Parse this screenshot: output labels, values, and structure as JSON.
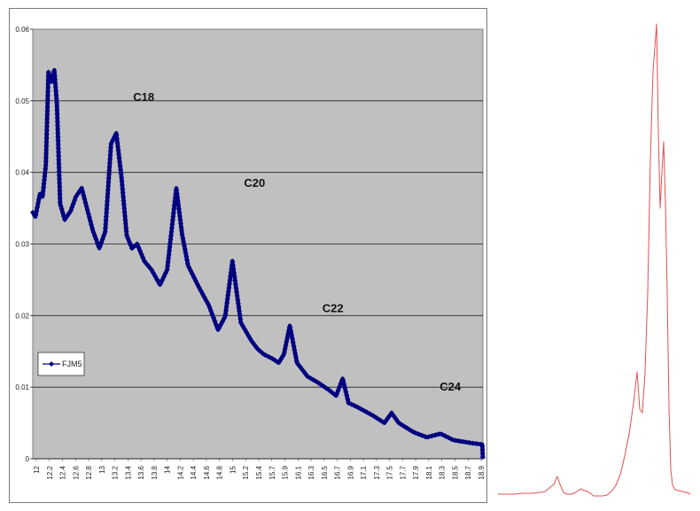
{
  "chart_data": [
    {
      "type": "line",
      "title": "",
      "xlabel": "",
      "ylabel": "",
      "ylim": [
        0,
        0.06
      ],
      "yticks": [
        "0",
        "0.01",
        "0.02",
        "0.03",
        "0.04",
        "0.05",
        "0.06"
      ],
      "xticks": [
        "12",
        "12.2",
        "12.4",
        "12.6",
        "12.8",
        "13",
        "13.2",
        "13.4",
        "13.6",
        "13.8",
        "14",
        "14.2",
        "14.4",
        "14.6",
        "14.8",
        "15",
        "15.2",
        "15.4",
        "15.7",
        "15.9",
        "16.1",
        "16.3",
        "16.5",
        "16.7",
        "16.9",
        "17.1",
        "17.3",
        "17.5",
        "17.7",
        "17.9",
        "18.1",
        "18.3",
        "18.5",
        "18.7",
        "18.9"
      ],
      "grid": true,
      "plot_background": "#c0c0c0",
      "legend": {
        "position": "left-middle",
        "entries": [
          "FJM5"
        ]
      },
      "annotations": [
        {
          "text": "C18",
          "x": 13.7,
          "y": 0.05
        },
        {
          "text": "C20",
          "x": 15.4,
          "y": 0.038
        },
        {
          "text": "C22",
          "x": 16.6,
          "y": 0.0205
        },
        {
          "text": "C24",
          "x": 18.4,
          "y": 0.0095
        }
      ],
      "series": [
        {
          "name": "FJM5",
          "color": "#000080",
          "marker": "diamond",
          "x": [
            12.0,
            12.04,
            12.11,
            12.15,
            12.2,
            12.24,
            12.29,
            12.33,
            12.37,
            12.42,
            12.49,
            12.58,
            12.66,
            12.75,
            12.83,
            12.92,
            13.02,
            13.11,
            13.2,
            13.28,
            13.36,
            13.44,
            13.52,
            13.6,
            13.71,
            13.82,
            13.95,
            14.06,
            14.2,
            14.29,
            14.38,
            14.55,
            14.7,
            14.84,
            14.95,
            15.06,
            15.19,
            15.35,
            15.45,
            15.54,
            15.67,
            15.77,
            15.85,
            15.94,
            16.05,
            16.21,
            16.38,
            16.54,
            16.65,
            16.75,
            16.84,
            16.98,
            17.22,
            17.39,
            17.5,
            17.61,
            17.84,
            18.04,
            18.25,
            18.45,
            18.72,
            18.89,
            18.9
          ],
          "y": [
            0.0344,
            0.0338,
            0.037,
            0.0366,
            0.041,
            0.054,
            0.0527,
            0.0543,
            0.0495,
            0.0356,
            0.0334,
            0.0346,
            0.0366,
            0.0378,
            0.035,
            0.0319,
            0.0294,
            0.0317,
            0.044,
            0.0455,
            0.0393,
            0.0312,
            0.0294,
            0.03,
            0.0276,
            0.0264,
            0.0243,
            0.0264,
            0.0378,
            0.0313,
            0.027,
            0.0239,
            0.0214,
            0.018,
            0.0199,
            0.0276,
            0.019,
            0.0165,
            0.0153,
            0.0146,
            0.014,
            0.0134,
            0.0146,
            0.0186,
            0.0134,
            0.0115,
            0.0106,
            0.0096,
            0.0088,
            0.0112,
            0.0078,
            0.0072,
            0.006,
            0.005,
            0.0064,
            0.005,
            0.0037,
            0.003,
            0.0035,
            0.0026,
            0.0022,
            0.002,
            0.0
          ]
        }
      ]
    },
    {
      "type": "line",
      "title": "",
      "xlabel": "",
      "ylabel": "",
      "axes": "none",
      "series": [
        {
          "name": "chromatogram",
          "color": "#e05050",
          "x": [
            562,
            580,
            590,
            600,
            610,
            615,
            620,
            625,
            629,
            632,
            636,
            640,
            645,
            650,
            655,
            660,
            665,
            670,
            675,
            680,
            685,
            690,
            695,
            700,
            705,
            710,
            715,
            719,
            722,
            725,
            728,
            731,
            734,
            737,
            741,
            743,
            745,
            747,
            749,
            751,
            753,
            755,
            757,
            759,
            762,
            766,
            770,
            775,
            779
          ],
          "y": [
            558,
            558,
            557,
            557,
            556,
            555,
            551,
            547,
            538,
            547,
            556,
            558,
            558,
            556,
            552,
            554,
            556,
            560,
            560,
            560,
            559,
            555,
            548,
            536,
            515,
            490,
            455,
            420,
            462,
            466,
            420,
            330,
            180,
            80,
            27,
            150,
            235,
            195,
            160,
            230,
            330,
            460,
            530,
            548,
            553,
            554,
            555,
            556,
            558
          ]
        }
      ]
    }
  ]
}
